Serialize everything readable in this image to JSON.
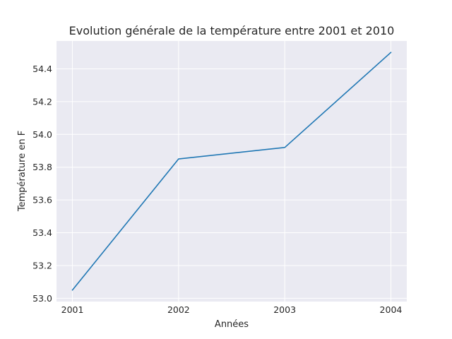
{
  "chart_data": {
    "type": "line",
    "title": "Evolution générale de la température entre 2001 et 2010",
    "xlabel": "Années",
    "ylabel": "Température en F",
    "x": [
      2001,
      2002,
      2003,
      2004
    ],
    "x_tick_labels": [
      "2001",
      "2002",
      "2003",
      "2004"
    ],
    "y_tick_labels": [
      "53.0",
      "53.2",
      "53.4",
      "53.6",
      "53.8",
      "54.0",
      "54.2",
      "54.4"
    ],
    "series": [
      {
        "values": [
          53.05,
          53.85,
          53.92,
          54.5
        ],
        "color": "#1f77b4"
      }
    ],
    "xlim": [
      2000.85,
      2004.15
    ],
    "ylim": [
      52.98,
      54.57
    ],
    "grid": true,
    "background_color": "#eaeaf2"
  }
}
